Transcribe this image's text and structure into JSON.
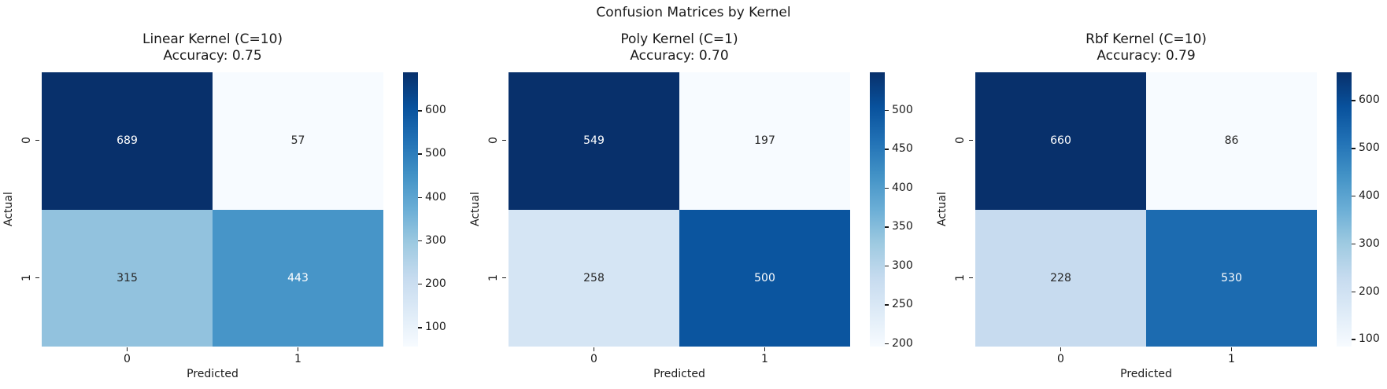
{
  "figure": {
    "suptitle": "Confusion Matrices by Kernel",
    "background_color": "#ffffff",
    "colormap": "Blues",
    "colormap_dark": "#08306b",
    "colormap_light": "#f7fbff"
  },
  "chart_data": [
    {
      "type": "heatmap",
      "title": "Linear Kernel (C=10)",
      "subtitle": "Accuracy: 0.75",
      "accuracy": 0.75,
      "xlabel": "Predicted",
      "ylabel": "Actual",
      "x_tick_labels": [
        "0",
        "1"
      ],
      "y_tick_labels": [
        "0",
        "1"
      ],
      "matrix": [
        [
          689,
          57
        ],
        [
          315,
          443
        ]
      ],
      "vmin": 57,
      "vmax": 689,
      "colormap": "Blues",
      "colorbar_ticks": [
        600,
        500,
        400,
        300,
        200,
        100
      ],
      "legend_position": "right-colorbar",
      "cell_colors": [
        [
          "#08306b",
          "#f7fbff"
        ],
        [
          "#92c2de",
          "#4795c8"
        ]
      ],
      "cell_text_colors": [
        [
          "#ffffff",
          "#262626"
        ],
        [
          "#262626",
          "#ffffff"
        ]
      ]
    },
    {
      "type": "heatmap",
      "title": "Poly Kernel (C=1)",
      "subtitle": "Accuracy: 0.70",
      "accuracy": 0.7,
      "xlabel": "Predicted",
      "ylabel": "Actual",
      "x_tick_labels": [
        "0",
        "1"
      ],
      "y_tick_labels": [
        "0",
        "1"
      ],
      "matrix": [
        [
          549,
          197
        ],
        [
          258,
          500
        ]
      ],
      "vmin": 197,
      "vmax": 549,
      "colormap": "Blues",
      "colorbar_ticks": [
        500,
        450,
        400,
        350,
        300,
        250,
        200
      ],
      "legend_position": "right-colorbar",
      "cell_colors": [
        [
          "#08306b",
          "#f7fbff"
        ],
        [
          "#d5e5f4",
          "#0b559f"
        ]
      ],
      "cell_text_colors": [
        [
          "#ffffff",
          "#262626"
        ],
        [
          "#262626",
          "#ffffff"
        ]
      ]
    },
    {
      "type": "heatmap",
      "title": "Rbf Kernel (C=10)",
      "subtitle": "Accuracy: 0.79",
      "accuracy": 0.79,
      "xlabel": "Predicted",
      "ylabel": "Actual",
      "x_tick_labels": [
        "0",
        "1"
      ],
      "y_tick_labels": [
        "0",
        "1"
      ],
      "matrix": [
        [
          660,
          86
        ],
        [
          228,
          530
        ]
      ],
      "vmin": 86,
      "vmax": 660,
      "colormap": "Blues",
      "colorbar_ticks": [
        600,
        500,
        400,
        300,
        200,
        100
      ],
      "legend_position": "right-colorbar",
      "cell_colors": [
        [
          "#08306b",
          "#f7fbff"
        ],
        [
          "#c7dbef",
          "#1c6bb0"
        ]
      ],
      "cell_text_colors": [
        [
          "#ffffff",
          "#262626"
        ],
        [
          "#262626",
          "#ffffff"
        ]
      ]
    }
  ]
}
